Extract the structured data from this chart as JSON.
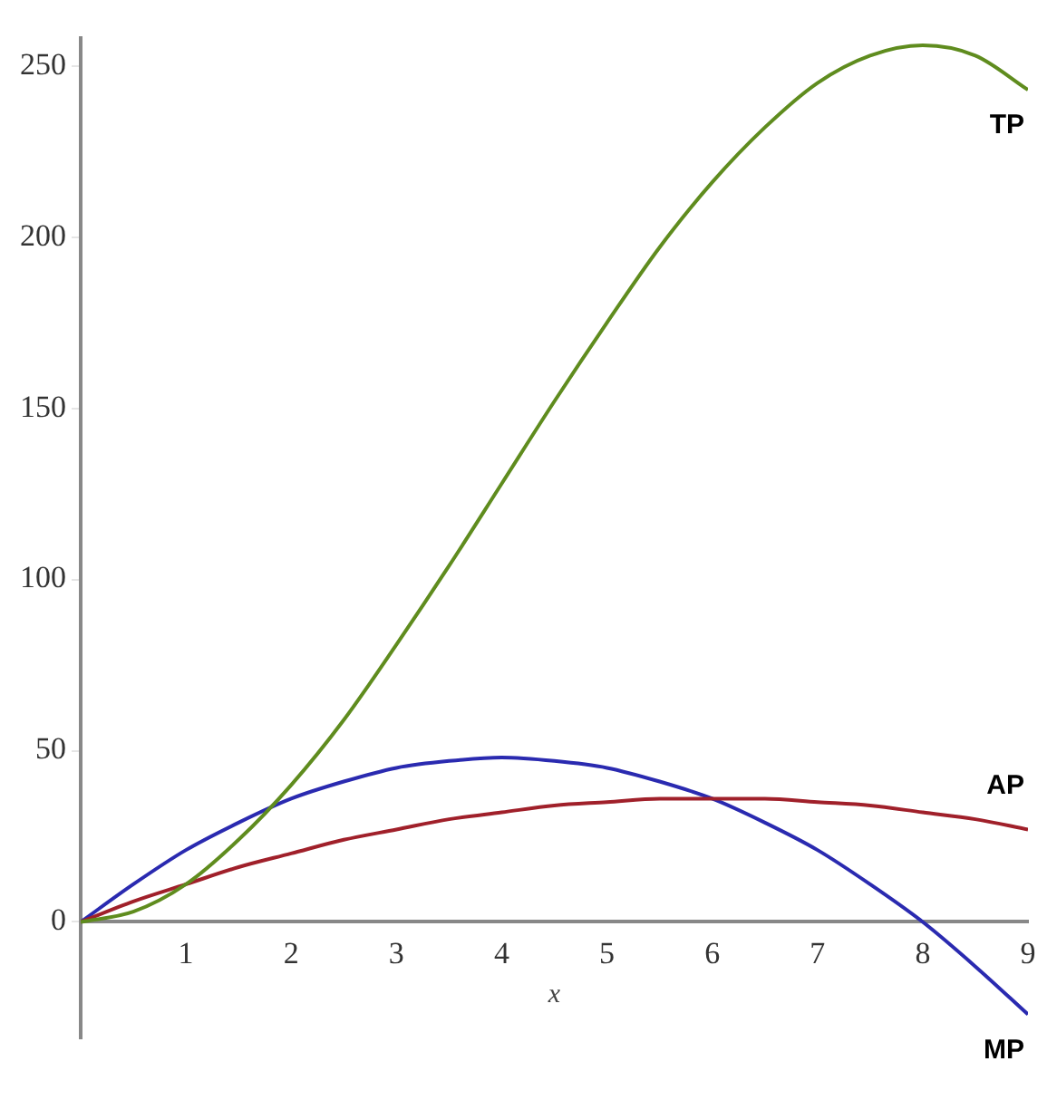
{
  "chart_data": {
    "type": "line",
    "xlabel": "x",
    "x": [
      0,
      0.5,
      1,
      1.5,
      2,
      2.5,
      3,
      3.5,
      4,
      4.5,
      5,
      5.5,
      6,
      6.5,
      7,
      7.5,
      8,
      8.5,
      9
    ],
    "series": [
      {
        "name": "TP",
        "color": "#5f8c1e",
        "values": [
          0,
          3,
          11,
          24,
          40,
          59,
          81,
          104,
          128,
          152,
          175,
          197,
          216,
          232,
          245,
          253,
          256,
          253,
          243
        ]
      },
      {
        "name": "AP",
        "color": "#a0202a",
        "values": [
          0,
          6,
          11,
          16,
          20,
          24,
          27,
          30,
          32,
          34,
          35,
          36,
          36,
          36,
          35,
          34,
          32,
          30,
          27
        ]
      },
      {
        "name": "MP",
        "color": "#2a2ab0",
        "values": [
          0,
          11,
          21,
          29,
          36,
          41,
          45,
          47,
          48,
          47,
          45,
          41,
          36,
          29,
          21,
          11,
          0,
          -13,
          -27
        ]
      }
    ],
    "xlim": [
      0,
      9
    ],
    "xticks": [
      1,
      2,
      3,
      4,
      5,
      6,
      7,
      8,
      9
    ],
    "ylim": [
      -34,
      258
    ],
    "yticks": [
      0,
      50,
      100,
      150,
      200,
      250
    ],
    "grid": false,
    "legend": false,
    "marker": "none",
    "line_style": "solid"
  }
}
